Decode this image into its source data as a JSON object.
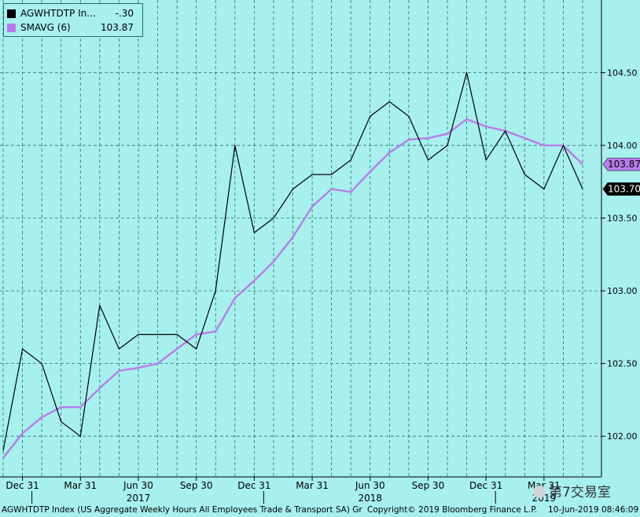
{
  "legend": {
    "items": [
      {
        "name": "AGWHTDTP In...",
        "value": "-.30",
        "color": "#000000"
      },
      {
        "name": "SMAVG (6)",
        "value": "103.87",
        "color": "#b67dea"
      }
    ]
  },
  "footer": {
    "left": "AGWHTDTP Index (US Aggregate Weekly Hours All Employees Trade & Transport SA) Gr",
    "copyright": "Copyright© 2019 Bloomberg Finance L.P.",
    "date": "10-Jun-2019 08:46:09"
  },
  "watermark": "第7交易室",
  "chart_data": {
    "type": "line",
    "title": "",
    "xlabel": "",
    "ylabel": "",
    "ylim": [
      101.72,
      105.0
    ],
    "y_ticks": [
      "102.00",
      "102.50",
      "103.00",
      "103.50",
      "104.00",
      "104.50"
    ],
    "x_ticks": [
      {
        "index": 1,
        "label": "Dec 31"
      },
      {
        "index": 4,
        "label": "Mar 31"
      },
      {
        "index": 7,
        "label": "Jun 30"
      },
      {
        "index": 10,
        "label": "Sep 30"
      },
      {
        "index": 13,
        "label": "Dec 31"
      },
      {
        "index": 16,
        "label": "Mar 31"
      },
      {
        "index": 19,
        "label": "Jun 30"
      },
      {
        "index": 22,
        "label": "Sep 30"
      },
      {
        "index": 25,
        "label": "Dec 31"
      },
      {
        "index": 28,
        "label": "Mar 31"
      }
    ],
    "year_labels": [
      {
        "index": 7,
        "label": "2017"
      },
      {
        "index": 19,
        "label": "2018"
      },
      {
        "index": 28,
        "label": "2019"
      }
    ],
    "series": [
      {
        "name": "AGWHTDTP In...",
        "color": "#000000",
        "values": [
          101.9,
          102.6,
          102.5,
          102.1,
          102.0,
          102.9,
          102.6,
          102.7,
          102.7,
          102.7,
          102.6,
          103.0,
          104.0,
          103.4,
          103.5,
          103.7,
          103.8,
          103.8,
          103.9,
          104.2,
          104.3,
          104.2,
          103.9,
          104.0,
          104.5,
          103.9,
          104.1,
          103.8,
          103.7,
          104.0,
          103.7
        ]
      },
      {
        "name": "SMAVG (6)",
        "color": "#b67dea",
        "values": [
          101.85,
          102.02,
          102.13,
          102.2,
          102.2,
          102.33,
          102.45,
          102.47,
          102.5,
          102.6,
          102.7,
          102.72,
          102.95,
          103.07,
          103.2,
          103.37,
          103.58,
          103.7,
          103.68,
          103.82,
          103.95,
          104.04,
          104.05,
          104.08,
          104.18,
          104.13,
          104.1,
          104.05,
          104.0,
          104.0,
          103.87
        ]
      }
    ],
    "last_value_labels": [
      {
        "series": 1,
        "text": "103.87",
        "bg": "#b67dea"
      },
      {
        "series": 0,
        "text": "103.70",
        "bg": "#000000"
      }
    ]
  }
}
